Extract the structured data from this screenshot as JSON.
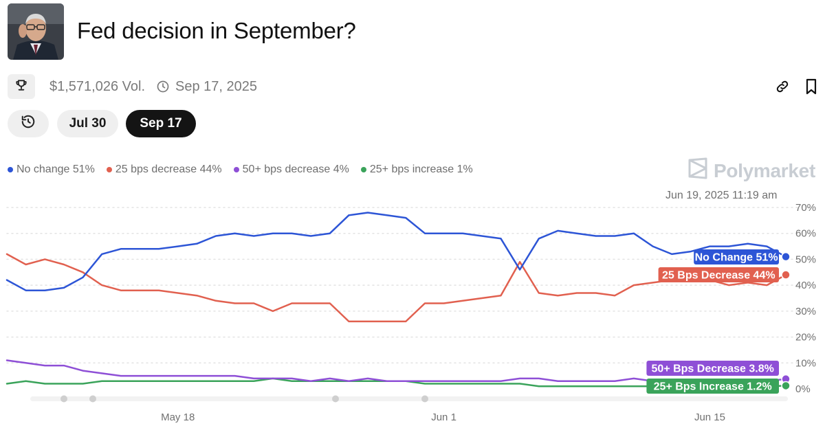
{
  "header": {
    "title": "Fed decision in September?"
  },
  "meta": {
    "volume": "$1,571,026 Vol.",
    "end_date": "Sep 17, 2025"
  },
  "tabs": [
    {
      "label": "Jul 30",
      "selected": false
    },
    {
      "label": "Sep 17",
      "selected": true
    }
  ],
  "brand": {
    "name": "Polymarket"
  },
  "timestamp": "Jun 19, 2025 11:19 am",
  "colors": {
    "no_change": "#2d55d6",
    "decrease_25": "#e1604f",
    "decrease_50": "#8e4fd6",
    "increase_25": "#3aa35a",
    "active_pill": "#141414"
  },
  "icons": [
    "trophy-icon",
    "clock-icon",
    "link-icon",
    "bookmark-icon",
    "history-icon",
    "polymarket-logo-icon"
  ],
  "chart_data": {
    "type": "line",
    "x": [
      "May 9",
      "May 10",
      "May 11",
      "May 12",
      "May 13",
      "May 14",
      "May 15",
      "May 16",
      "May 17",
      "May 18",
      "May 19",
      "May 20",
      "May 21",
      "May 22",
      "May 23",
      "May 24",
      "May 25",
      "May 26",
      "May 27",
      "May 28",
      "May 29",
      "May 30",
      "May 31",
      "Jun 1",
      "Jun 2",
      "Jun 3",
      "Jun 4",
      "Jun 5",
      "Jun 6",
      "Jun 7",
      "Jun 8",
      "Jun 9",
      "Jun 10",
      "Jun 11",
      "Jun 12",
      "Jun 13",
      "Jun 14",
      "Jun 15",
      "Jun 16",
      "Jun 17",
      "Jun 18",
      "Jun 19"
    ],
    "x_tick_labels": [
      "May 18",
      "Jun 1",
      "Jun 15"
    ],
    "y_tick_labels": [
      "0%",
      "10%",
      "20%",
      "30%",
      "40%",
      "50%",
      "60%",
      "70%"
    ],
    "ylim": [
      0,
      70
    ],
    "grid": true,
    "legend_position": "top-left",
    "series": [
      {
        "name": "No change",
        "legend": "No change 51%",
        "label": "No Change 51%",
        "values": [
          42,
          38,
          38,
          39,
          43,
          52,
          54,
          54,
          54,
          55,
          56,
          59,
          60,
          59,
          60,
          60,
          59,
          60,
          67,
          68,
          67,
          66,
          60,
          60,
          60,
          59,
          58,
          46,
          58,
          61,
          60,
          59,
          59,
          60,
          55,
          52,
          53,
          55,
          55,
          56,
          55,
          51
        ]
      },
      {
        "name": "25 bps decrease",
        "legend": "25 bps decrease 44%",
        "label": "25 Bps Decrease 44%",
        "values": [
          52,
          48,
          50,
          48,
          45,
          40,
          38,
          38,
          38,
          37,
          36,
          34,
          33,
          33,
          30,
          33,
          33,
          33,
          26,
          26,
          26,
          26,
          33,
          33,
          34,
          35,
          36,
          49,
          37,
          36,
          37,
          37,
          36,
          40,
          41,
          42,
          43,
          42,
          40,
          41,
          40,
          44
        ]
      },
      {
        "name": "50+ bps decrease",
        "legend": "50+ bps decrease 4%",
        "label": "50+ Bps Decrease 3.8%",
        "values": [
          11,
          10,
          9,
          9,
          7,
          6,
          5,
          5,
          5,
          5,
          5,
          5,
          5,
          4,
          4,
          4,
          3,
          4,
          3,
          4,
          3,
          3,
          3,
          3,
          3,
          3,
          3,
          4,
          4,
          3,
          3,
          3,
          3,
          4,
          3,
          3,
          3,
          3,
          3,
          3,
          3,
          3.8
        ]
      },
      {
        "name": "25+ bps increase",
        "legend": "25+ bps increase 1%",
        "label": "25+ Bps Increase 1.2%",
        "values": [
          2,
          3,
          2,
          2,
          2,
          3,
          3,
          3,
          3,
          3,
          3,
          3,
          3,
          3,
          4,
          3,
          3,
          3,
          3,
          3,
          3,
          3,
          2,
          2,
          2,
          2,
          2,
          2,
          1,
          1,
          1,
          1,
          1,
          1,
          1,
          1,
          1,
          1,
          1,
          1,
          1,
          1.2
        ]
      }
    ]
  }
}
